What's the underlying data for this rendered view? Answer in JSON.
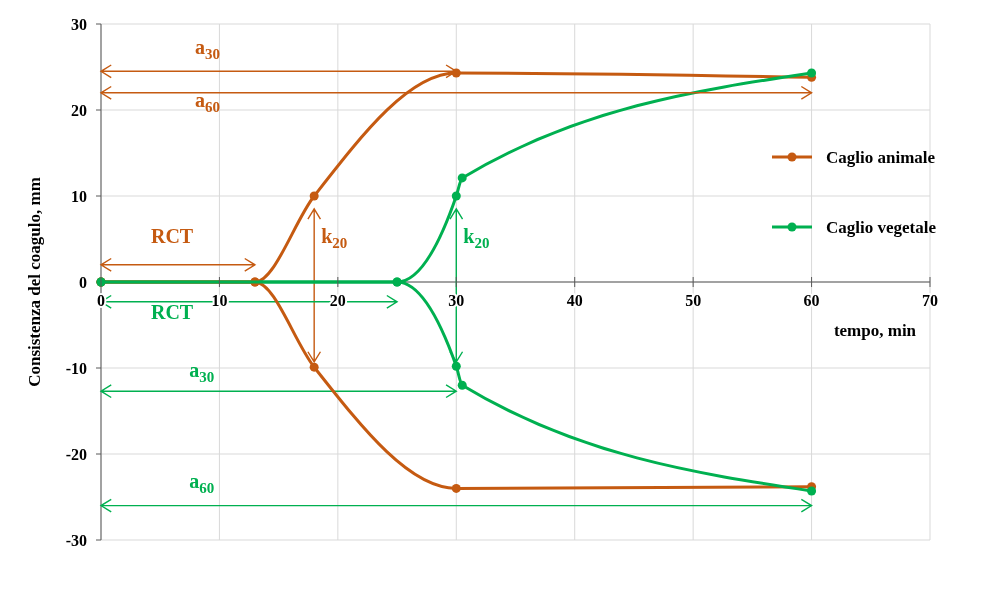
{
  "chart_data": {
    "type": "line",
    "xlabel": "tempo, min",
    "ylabel": "Consistenza del coagulo, mm",
    "xlim": [
      0,
      70
    ],
    "xticks": [
      0,
      10,
      20,
      30,
      40,
      50,
      60,
      70
    ],
    "ylim": [
      -30,
      30
    ],
    "yticks": [
      -30,
      -20,
      -10,
      0,
      10,
      20,
      30
    ],
    "grid": true,
    "legend": "right",
    "marker": "circle",
    "line_style": "solid",
    "series": [
      {
        "name": "Caglio animale",
        "color": "#c55a11",
        "x": [
          0,
          13,
          18,
          30,
          60
        ],
        "values": [
          0,
          0,
          10,
          24.3,
          23.8
        ]
      },
      {
        "name": "Caglio vegetale",
        "color": "#00b050",
        "x": [
          0,
          25,
          30,
          30.5,
          60
        ],
        "values": [
          0,
          0,
          10,
          12.1,
          24.3
        ]
      },
      {
        "color": "#c55a11",
        "x": [
          0,
          13,
          18,
          30,
          60
        ],
        "values": [
          0,
          0,
          -9.9,
          -24,
          -23.8
        ]
      },
      {
        "color": "#00b050",
        "x": [
          0,
          25,
          30,
          30.5,
          60
        ],
        "values": [
          0,
          0,
          -9.8,
          -12,
          -24.3
        ]
      },
      {
        "color": "#c55a11",
        "marker": "none",
        "x": [
          0,
          60
        ],
        "values": [
          22,
          22
        ]
      },
      {
        "color": "#00b050",
        "marker": "none",
        "x": [
          0,
          60
        ],
        "values": [
          -26,
          -26
        ]
      }
    ],
    "annotations": [
      "a$_{30}$",
      "a$_{60}$",
      "RCT",
      {
        "text": "k$_{20}$",
        "x": 18,
        "y": 10
      },
      "RCT",
      {
        "text": "k$_{20}$",
        "x": 30,
        "y": 10
      },
      "a$_{30}$",
      "a$_{60}$"
    ]
  }
}
